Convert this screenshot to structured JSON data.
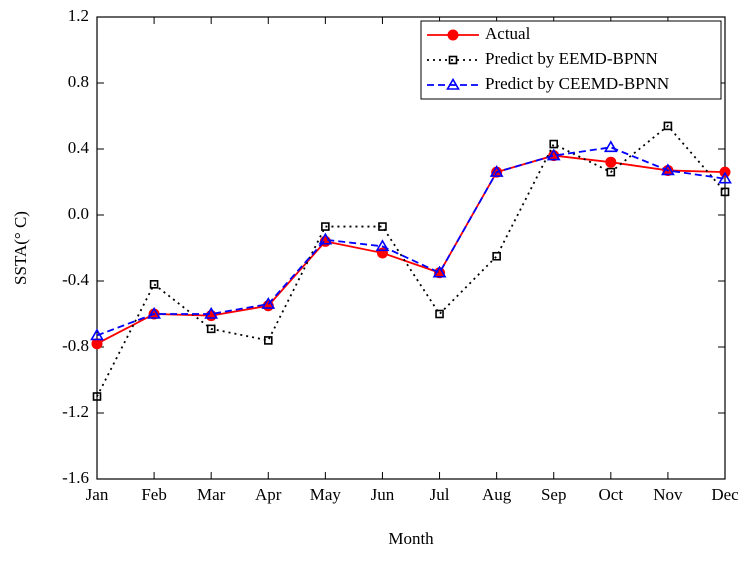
{
  "chart_data": {
    "type": "line",
    "x_label": "Month",
    "y_label": "SSTA(° C)",
    "categories": [
      "Jan",
      "Feb",
      "Mar",
      "Apr",
      "May",
      "Jun",
      "Jul",
      "Aug",
      "Sep",
      "Oct",
      "Nov",
      "Dec"
    ],
    "series": [
      {
        "name": "Actual",
        "color": "#ff0000",
        "marker": "circle",
        "dash": "solid",
        "values": [
          -0.78,
          -0.6,
          -0.61,
          -0.55,
          -0.16,
          -0.23,
          -0.35,
          0.26,
          0.36,
          0.32,
          0.27,
          0.26
        ]
      },
      {
        "name": "Predict by EEMD-BPNN",
        "color": "#000000",
        "marker": "square",
        "dash": "dot",
        "values": [
          -1.1,
          -0.42,
          -0.69,
          -0.76,
          -0.07,
          -0.07,
          -0.6,
          -0.25,
          0.43,
          0.26,
          0.54,
          0.14
        ]
      },
      {
        "name": "Predict by CEEMD-BPNN",
        "color": "#0000ff",
        "marker": "triangle",
        "dash": "dash",
        "values": [
          -0.73,
          -0.6,
          -0.6,
          -0.54,
          -0.15,
          -0.19,
          -0.35,
          0.26,
          0.36,
          0.41,
          0.27,
          0.22
        ]
      }
    ],
    "ylim": [
      -1.6,
      1.2
    ],
    "yticks": [
      -1.6,
      -1.2,
      -0.8,
      -0.4,
      {
        "value": 0,
        "label": "0.0"
      },
      0.4,
      0.8,
      1.2
    ],
    "legend": "upper right",
    "grid": false
  }
}
